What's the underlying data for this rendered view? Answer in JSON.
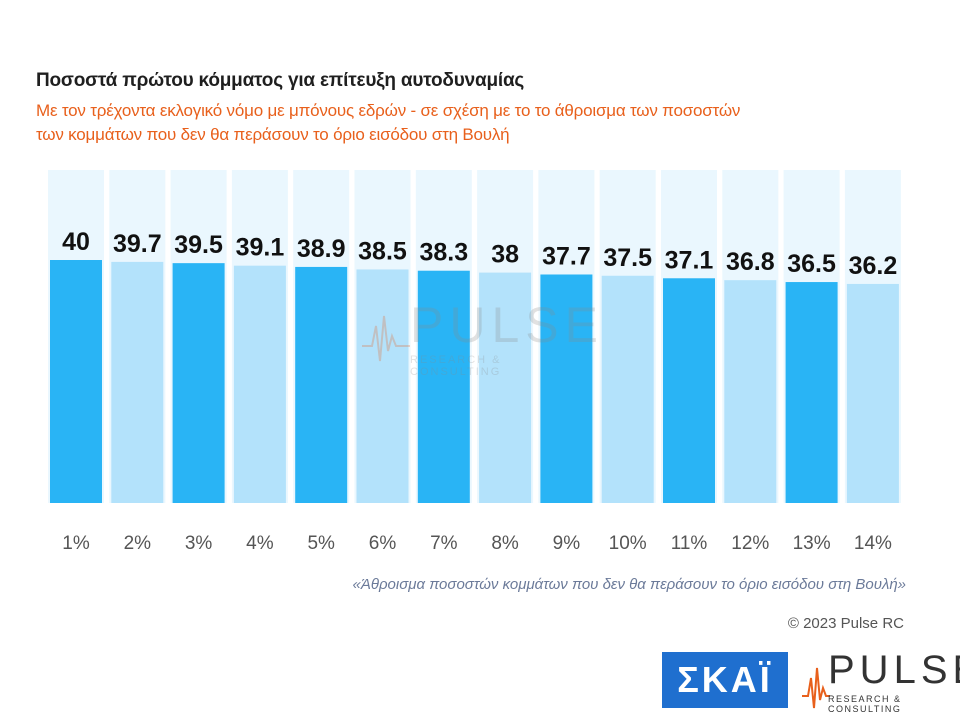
{
  "header": {
    "title": "Ποσοστά πρώτου κόμματος για επίτευξη αυτοδυναμίας",
    "subtitle": "Με τον τρέχοντα εκλογικό νόμο με μπόνους εδρών - σε σχέση με το το άθροισμα των ποσοστών των κομμάτων που δεν θα περάσουν το όριο εισόδου στη Βουλή"
  },
  "chart_data": {
    "type": "bar",
    "title": "Ποσοστά πρώτου κόμματος για επίτευξη αυτοδυναμίας",
    "subtitle": "Με τον τρέχοντα εκλογικό νόμο με μπόνους εδρών - σε σχέση με το το άθροισμα των ποσοστών των κομμάτων που δεν θα περάσουν το όριο εισόδου στη Βουλή",
    "xlabel": "«Άθροισμα ποσοστών κομμάτων που δεν θα περάσουν το όριο εισόδου στη Βουλή»",
    "ylabel": "",
    "categories": [
      "1%",
      "2%",
      "3%",
      "4%",
      "5%",
      "6%",
      "7%",
      "8%",
      "9%",
      "10%",
      "11%",
      "12%",
      "13%",
      "14%"
    ],
    "values": [
      40,
      39.7,
      39.5,
      39.1,
      38.9,
      38.5,
      38.3,
      38,
      37.7,
      37.5,
      37.1,
      36.8,
      36.5,
      36.2
    ],
    "data_labels": [
      "40",
      "39.7",
      "39.5",
      "39.1",
      "38.9",
      "38.5",
      "38.3",
      "38",
      "37.7",
      "37.5",
      "37.1",
      "36.8",
      "36.5",
      "36.2"
    ],
    "ylim": [
      0,
      40
    ],
    "grid": false,
    "legend": "none",
    "colors": {
      "bar_strong": "#29b4f5",
      "bar_light": "#b3e2fb",
      "bar_background": "#eaf7fe"
    }
  },
  "footer": {
    "copyright": "© 2023 Pulse RC"
  },
  "logos": {
    "skai": "ΣΚΑΪ",
    "pulse": "PULSE",
    "pulse_tagline": "RESEARCH & CONSULTING"
  },
  "watermark": {
    "name": "PULSE",
    "tagline": "RESEARCH & CONSULTING"
  }
}
